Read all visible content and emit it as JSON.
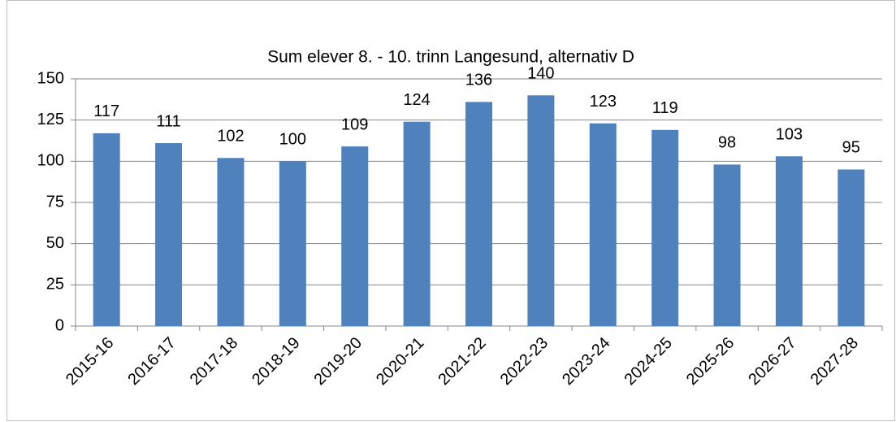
{
  "chart_data": {
    "type": "bar",
    "title": "Sum elever 8. - 10. trinn Langesund, alternativ D",
    "categories": [
      "2015-16",
      "2016-17",
      "2017-18",
      "2018-19",
      "2019-20",
      "2020-21",
      "2021-22",
      "2022-23",
      "2023-24",
      "2024-25",
      "2025-26",
      "2026-27",
      "2027-28"
    ],
    "values": [
      117,
      111,
      102,
      100,
      109,
      124,
      136,
      140,
      123,
      119,
      98,
      103,
      95
    ],
    "color": "#4f81bd",
    "ylim": [
      0,
      150
    ],
    "yticks": [
      0,
      25,
      50,
      75,
      100,
      125,
      150
    ],
    "grid": true
  }
}
